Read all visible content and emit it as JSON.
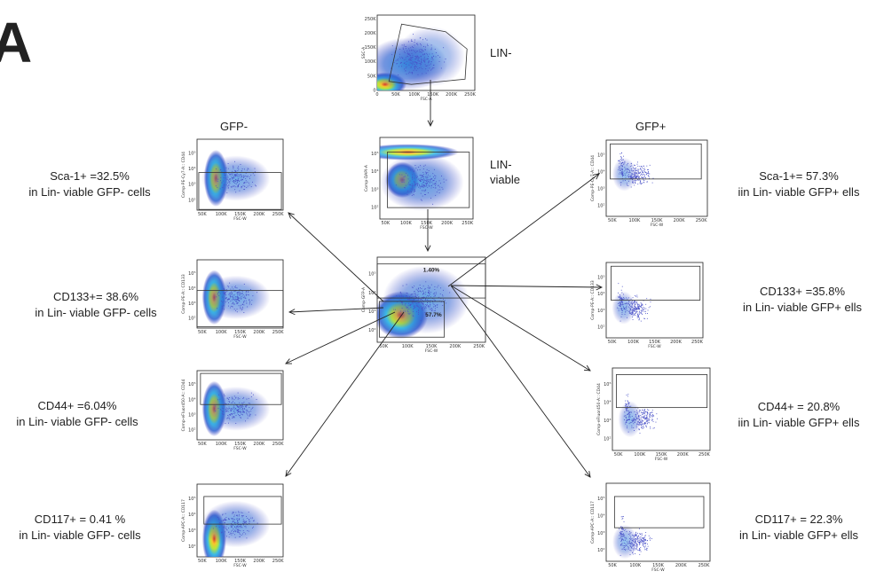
{
  "panel_letter": "A",
  "headings": {
    "gfp_neg": "GFP-",
    "gfp_pos": "GFP+",
    "lin_neg": "LIN-",
    "lin_viable": [
      "LIN-",
      "viable"
    ]
  },
  "center_gates": {
    "upper": "1.40%",
    "lower": "57.7%"
  },
  "left_labels": [
    {
      "name": "sca1",
      "line1": "Sca-1+ =32.5%",
      "line2": "in Lin- viable GFP- cells"
    },
    {
      "name": "cd133",
      "line1": "CD133+= 38.6%",
      "line2": "in Lin- viable GFP- cells"
    },
    {
      "name": "cd44",
      "line1": "CD44+ =6.04%",
      "line2": "in Lin- viable GFP- cells"
    },
    {
      "name": "cd117",
      "line1": "CD117+ = 0.41 %",
      "line2": "in Lin- viable GFP- cells"
    }
  ],
  "right_labels": [
    {
      "name": "sca1",
      "line1": "Sca-1+= 57.3%",
      "line2": "iin Lin- viable GFP+ ells"
    },
    {
      "name": "cd133",
      "line1": "CD133+ =35.8%",
      "line2": "in Lin- viable GFP+ ells"
    },
    {
      "name": "cd44",
      "line1": "CD44+ = 20.8%",
      "line2": "iin Lin- viable GFP+ ells"
    },
    {
      "name": "cd117",
      "line1": "CD117+ = 22.3%",
      "line2": "in Lin- viable GFP+ ells"
    }
  ],
  "axis_ticks": {
    "fsc_linear": [
      "0",
      "50K",
      "100K",
      "150K",
      "200K",
      "250K"
    ],
    "fsc_w": [
      "50K",
      "100K",
      "150K",
      "200K",
      "250K"
    ],
    "ssc_linear": [
      "0",
      "50K",
      "100K",
      "150K",
      "200K",
      "250K"
    ],
    "log": [
      "10²",
      "10³",
      "10⁴",
      "10⁵"
    ]
  },
  "axis_labels": {
    "fsc_a": "FSC-A",
    "fsc_w": "FSC-W",
    "ssc_a": "SSC-A",
    "lin": "Comp-GFP-A",
    "viable": "Comp-DAPI-A",
    "sca1": "Comp-PE-Cy7-A:: CD44",
    "cd133": "Comp-PE-A:: CD133",
    "cd44": "Comp-eFluor450-A:: CD44",
    "cd117": "Comp-APC-A:: CD117"
  },
  "colors": {
    "density_low": "#2b2bb8",
    "density_mid": "#3ab9e6",
    "density_high": "#f2e93a",
    "density_peak": "#e83a1e",
    "sparse": "#4a52c8",
    "gate": "#333333"
  }
}
